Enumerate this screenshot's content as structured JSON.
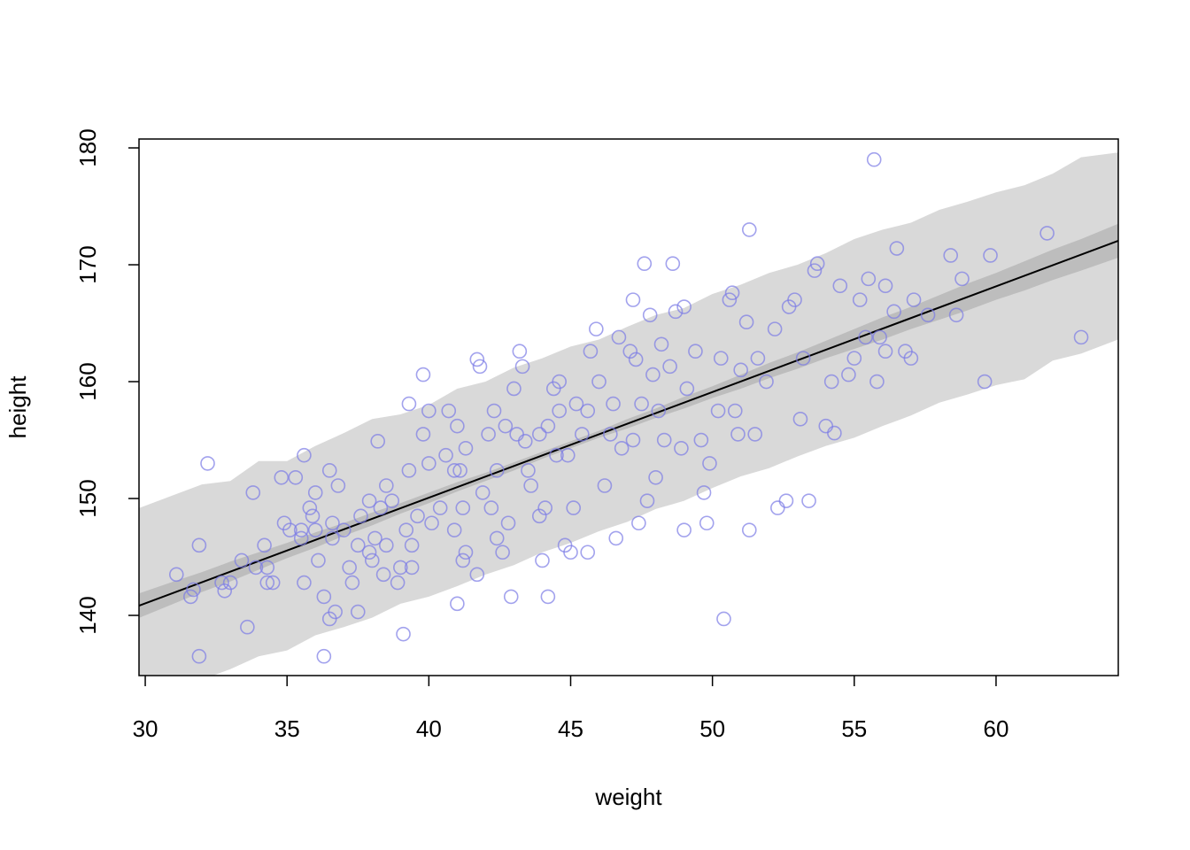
{
  "chart_data": {
    "type": "scatter",
    "xlabel": "weight",
    "ylabel": "height",
    "xlim": [
      29.78,
      64.31
    ],
    "ylim": [
      134.85,
      180.76
    ],
    "xticks": [
      30,
      35,
      40,
      45,
      50,
      55,
      60
    ],
    "yticks": [
      140,
      150,
      160,
      170,
      180
    ],
    "bands_x": [
      29.8,
      31,
      32,
      33,
      34,
      35,
      36,
      37,
      38,
      39,
      40,
      41,
      42,
      43,
      44,
      45,
      46,
      47,
      48,
      49,
      50,
      51,
      52,
      53,
      54,
      55,
      56,
      57,
      58,
      59,
      60,
      61,
      62,
      63,
      64.3
    ],
    "bands": [
      {
        "color": "#d9d9d9",
        "lower": [
          132.6,
          133.5,
          134.5,
          135.4,
          136.5,
          137.0,
          138.3,
          139.0,
          139.8,
          141.0,
          141.6,
          142.5,
          143.5,
          144.3,
          145.4,
          146.2,
          147.2,
          148.0,
          149.1,
          149.8,
          150.9,
          151.9,
          152.6,
          153.6,
          154.5,
          155.2,
          156.2,
          157.1,
          158.2,
          158.9,
          159.7,
          160.2,
          161.8,
          162.4,
          163.6
        ],
        "upper": [
          149.2,
          150.3,
          151.2,
          151.5,
          153.2,
          153.2,
          154.5,
          155.6,
          156.8,
          157.2,
          158.0,
          159.4,
          160.0,
          161.2,
          162.0,
          163.0,
          163.6,
          164.7,
          165.7,
          166.3,
          167.5,
          168.3,
          169.3,
          170.0,
          171.0,
          172.2,
          173.0,
          173.6,
          174.7,
          175.4,
          176.2,
          176.8,
          177.8,
          179.2,
          179.6
        ]
      },
      {
        "color": "#bdbdbd",
        "lower": [
          139.8,
          141.0,
          142.0,
          142.9,
          143.9,
          144.9,
          145.8,
          146.8,
          147.7,
          148.7,
          149.6,
          150.6,
          151.5,
          152.4,
          153.4,
          154.3,
          155.2,
          156.0,
          156.9,
          157.7,
          158.6,
          159.4,
          160.3,
          161.1,
          162.0,
          162.8,
          163.6,
          164.5,
          165.3,
          166.1,
          167.0,
          167.8,
          168.7,
          169.5,
          170.6
        ],
        "upper": [
          141.9,
          142.9,
          143.7,
          144.6,
          145.4,
          146.2,
          147.1,
          147.9,
          148.8,
          149.6,
          150.5,
          151.4,
          152.2,
          153.1,
          154.0,
          154.9,
          155.8,
          156.8,
          157.7,
          158.7,
          159.6,
          160.6,
          161.6,
          162.5,
          163.5,
          164.5,
          165.5,
          166.4,
          167.4,
          168.4,
          169.3,
          170.3,
          171.3,
          172.2,
          173.5
        ]
      }
    ],
    "line": {
      "color": "#000000",
      "x": [
        29.78,
        64.31
      ],
      "y": [
        140.83,
        172.05
      ]
    },
    "points": {
      "color": "#7b7be6",
      "x": [
        31.1,
        31.6,
        31.7,
        31.9,
        31.9,
        32.2,
        32.7,
        32.8,
        33,
        33.4,
        33.6,
        33.8,
        33.9,
        34.2,
        34.3,
        34.3,
        34.5,
        34.8,
        34.9,
        35.1,
        35.3,
        35.5,
        35.5,
        35.6,
        35.6,
        35.8,
        35.9,
        36,
        36,
        36.1,
        36.3,
        36.3,
        36.5,
        36.5,
        36.6,
        36.6,
        36.7,
        36.8,
        37,
        37.2,
        37.3,
        37.5,
        37.5,
        37.6,
        37.9,
        37.9,
        38,
        38.1,
        38.2,
        38.3,
        38.4,
        38.5,
        38.5,
        38.7,
        38.9,
        39,
        39.1,
        39.2,
        39.3,
        39.3,
        39.4,
        39.4,
        39.6,
        39.8,
        39.8,
        40,
        40,
        40.1,
        40.4,
        40.6,
        40.7,
        40.9,
        40.9,
        41,
        41,
        41.1,
        41.2,
        41.2,
        41.3,
        41.3,
        41.7,
        41.7,
        41.8,
        41.9,
        42.1,
        42.2,
        42.3,
        42.4,
        42.4,
        42.6,
        42.7,
        42.8,
        42.9,
        43,
        43.1,
        43.2,
        43.3,
        43.4,
        43.5,
        43.6,
        43.9,
        43.9,
        44,
        44.1,
        44.2,
        44.2,
        44.4,
        44.5,
        44.6,
        44.6,
        44.8,
        44.9,
        45,
        45.1,
        45.2,
        45.4,
        45.6,
        45.6,
        45.7,
        45.9,
        46,
        46.2,
        46.4,
        46.5,
        46.6,
        46.7,
        46.8,
        47.1,
        47.2,
        47.2,
        47.3,
        47.4,
        47.5,
        47.6,
        47.7,
        47.8,
        47.9,
        48,
        48.1,
        48.2,
        48.3,
        48.5,
        48.6,
        48.7,
        48.9,
        49,
        49,
        49.1,
        49.4,
        49.6,
        49.7,
        49.8,
        49.9,
        50.2,
        50.3,
        50.4,
        50.6,
        50.7,
        50.8,
        50.9,
        51,
        51.2,
        51.3,
        51.3,
        51.5,
        51.6,
        51.9,
        52.2,
        52.3,
        52.6,
        52.7,
        52.9,
        53.1,
        53.2,
        53.4,
        53.6,
        53.7,
        54,
        54.2,
        54.3,
        54.5,
        54.8,
        55,
        55.2,
        55.4,
        55.5,
        55.7,
        55.8,
        55.9,
        56.1,
        56.1,
        56.4,
        56.5,
        56.8,
        57,
        57.1,
        57.6,
        58.4,
        58.6,
        58.8,
        59.6,
        59.8,
        61.8,
        63
      ],
      "y": [
        143.5,
        141.6,
        142.2,
        146,
        136.5,
        153,
        142.8,
        142.1,
        142.8,
        144.7,
        139,
        150.5,
        144.1,
        146,
        144.1,
        142.8,
        142.8,
        151.8,
        147.9,
        147.3,
        151.8,
        146.6,
        147.3,
        153.7,
        142.8,
        149.2,
        148.5,
        150.5,
        147.3,
        144.7,
        141.6,
        136.5,
        139.7,
        152.4,
        146.6,
        147.9,
        140.3,
        151.1,
        147.3,
        144.1,
        142.8,
        140.3,
        146,
        148.5,
        149.8,
        145.4,
        144.7,
        146.6,
        154.9,
        149.2,
        143.5,
        146,
        151.1,
        149.8,
        142.8,
        144.1,
        138.4,
        147.3,
        158.1,
        152.4,
        146,
        144.1,
        148.5,
        155.5,
        160.6,
        153,
        157.5,
        147.9,
        149.2,
        153.7,
        157.5,
        152.4,
        147.3,
        141,
        156.2,
        152.4,
        144.7,
        149.2,
        154.3,
        145.4,
        143.5,
        161.9,
        161.3,
        150.5,
        155.5,
        149.2,
        157.5,
        146.6,
        152.4,
        145.4,
        156.2,
        147.9,
        141.6,
        159.4,
        155.5,
        162.6,
        161.3,
        154.9,
        152.4,
        151.1,
        155.5,
        148.5,
        144.7,
        149.2,
        141.6,
        156.2,
        159.4,
        153.7,
        157.5,
        160,
        146,
        153.7,
        145.4,
        149.2,
        158.1,
        155.5,
        145.4,
        157.5,
        162.6,
        164.5,
        160,
        151.1,
        155.5,
        158.1,
        146.6,
        163.8,
        154.3,
        162.6,
        167,
        155,
        161.9,
        147.9,
        158.1,
        170.1,
        149.8,
        165.7,
        160.6,
        151.8,
        157.5,
        163.2,
        155,
        161.3,
        170.1,
        166,
        154.3,
        147.3,
        166.4,
        159.4,
        162.6,
        155,
        150.5,
        147.9,
        153,
        157.5,
        162,
        139.7,
        167,
        167.6,
        157.5,
        155.5,
        161,
        165.1,
        173,
        147.3,
        155.5,
        162,
        160,
        164.5,
        149.2,
        149.8,
        166.4,
        167,
        156.8,
        162,
        149.8,
        169.5,
        170.1,
        156.2,
        160,
        155.6,
        168.2,
        160.6,
        162,
        167,
        163.8,
        168.8,
        179,
        160,
        163.8,
        168.2,
        162.6,
        166,
        171.4,
        162.6,
        162,
        167,
        165.7,
        170.8,
        165.7,
        168.8,
        160,
        170.8,
        172.7,
        163.8
      ]
    }
  }
}
